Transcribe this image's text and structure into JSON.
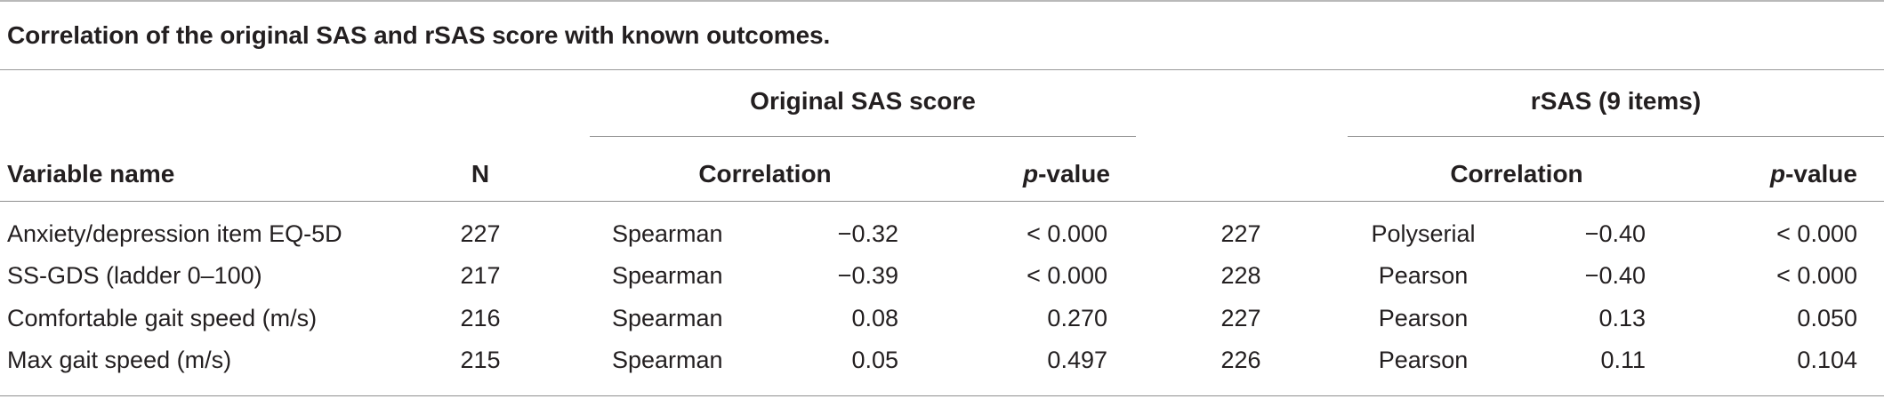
{
  "caption": "Correlation of the original SAS and rSAS score with known outcomes.",
  "groups": {
    "original": "Original SAS score",
    "rsas": "rSAS (9 items)"
  },
  "headers": {
    "variable": "Variable name",
    "n": "N",
    "correlation_orig": "Correlation",
    "p_orig_italic": "p",
    "p_orig_rest": "-value",
    "correlation_rsas": "Correlation",
    "p_rsas_italic": "p",
    "p_rsas_rest": "-value"
  },
  "rows": [
    {
      "variable": "Anxiety/depression item EQ-5D",
      "n": "227",
      "orig_method": "Spearman",
      "orig_corr": "−0.32",
      "orig_p": "< 0.000",
      "rsas_n": "227",
      "rsas_method": "Polyserial",
      "rsas_corr": "−0.40",
      "rsas_p": "< 0.000"
    },
    {
      "variable": "SS-GDS (ladder 0–100)",
      "n": "217",
      "orig_method": "Spearman",
      "orig_corr": "−0.39",
      "orig_p": "< 0.000",
      "rsas_n": "228",
      "rsas_method": "Pearson",
      "rsas_corr": "−0.40",
      "rsas_p": "< 0.000"
    },
    {
      "variable": "Comfortable gait speed (m/s)",
      "n": "216",
      "orig_method": "Spearman",
      "orig_corr": "0.08",
      "orig_p": "0.270",
      "rsas_n": "227",
      "rsas_method": "Pearson",
      "rsas_corr": "0.13",
      "rsas_p": "0.050"
    },
    {
      "variable": "Max gait speed (m/s)",
      "n": "215",
      "orig_method": "Spearman",
      "orig_corr": "0.05",
      "orig_p": "0.497",
      "rsas_n": "226",
      "rsas_method": "Pearson",
      "rsas_corr": "0.11",
      "rsas_p": "0.104"
    }
  ]
}
